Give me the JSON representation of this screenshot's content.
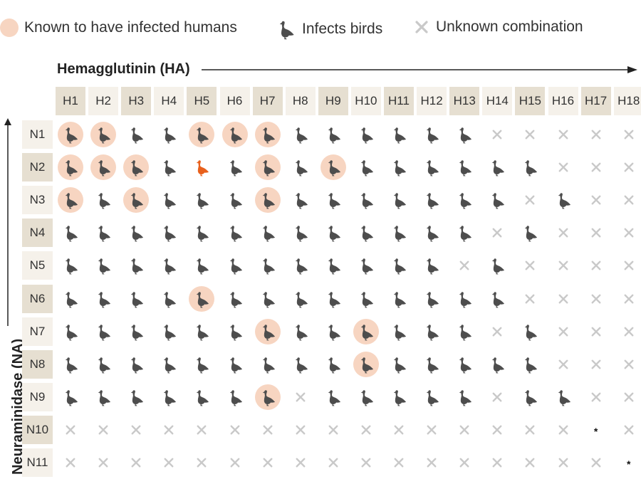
{
  "legend": {
    "humans_label": "Known to have infected humans",
    "birds_label": "Infects birds",
    "unknown_label": "Unknown combination"
  },
  "axes": {
    "ha_title": "Hemagglutinin (HA)",
    "na_title": "Neuraminidase (NA)"
  },
  "colors": {
    "human_circle": "#f7d5c1",
    "bird": "#4d4d4d",
    "highlight_bird": "#e8601c",
    "unknown_x": "#c9c9c9",
    "header_dark": "#e6dfd1",
    "header_light": "#f5f1ea"
  },
  "icons": {
    "bird": "bird-icon",
    "unknown": "x-icon",
    "human": "human-infection-circle",
    "marker": "asterisk"
  },
  "columns": [
    "H1",
    "H2",
    "H3",
    "H4",
    "H5",
    "H6",
    "H7",
    "H8",
    "H9",
    "H10",
    "H11",
    "H12",
    "H13",
    "H14",
    "H15",
    "H16",
    "H17",
    "H18"
  ],
  "rows": [
    {
      "label": "N1",
      "cells": [
        "BH",
        "BH",
        "B",
        "B",
        "BH",
        "BH",
        "BH",
        "B",
        "B",
        "B",
        "B",
        "B",
        "B",
        "X",
        "X",
        "X",
        "X",
        "X"
      ]
    },
    {
      "label": "N2",
      "cells": [
        "BH",
        "BH",
        "BH",
        "B",
        "O",
        "B",
        "BH",
        "B",
        "BH",
        "B",
        "B",
        "B",
        "B",
        "B",
        "B",
        "X",
        "X",
        "X"
      ]
    },
    {
      "label": "N3",
      "cells": [
        "BH",
        "B",
        "BH",
        "B",
        "B",
        "B",
        "BH",
        "B",
        "B",
        "B",
        "B",
        "B",
        "B",
        "B",
        "X",
        "B",
        "X",
        "X"
      ]
    },
    {
      "label": "N4",
      "cells": [
        "B",
        "B",
        "B",
        "B",
        "B",
        "B",
        "B",
        "B",
        "B",
        "B",
        "B",
        "B",
        "B",
        "X",
        "B",
        "X",
        "X",
        "X"
      ]
    },
    {
      "label": "N5",
      "cells": [
        "B",
        "B",
        "B",
        "B",
        "B",
        "B",
        "B",
        "B",
        "B",
        "B",
        "B",
        "B",
        "X",
        "B",
        "X",
        "X",
        "X",
        "X"
      ]
    },
    {
      "label": "N6",
      "cells": [
        "B",
        "B",
        "B",
        "B",
        "BH",
        "B",
        "B",
        "B",
        "B",
        "B",
        "B",
        "B",
        "B",
        "B",
        "X",
        "X",
        "X",
        "X"
      ]
    },
    {
      "label": "N7",
      "cells": [
        "B",
        "B",
        "B",
        "B",
        "B",
        "B",
        "BH",
        "B",
        "B",
        "BH",
        "B",
        "B",
        "B",
        "X",
        "B",
        "X",
        "X",
        "X"
      ]
    },
    {
      "label": "N8",
      "cells": [
        "B",
        "B",
        "B",
        "B",
        "B",
        "B",
        "B",
        "B",
        "B",
        "BH",
        "B",
        "B",
        "B",
        "B",
        "B",
        "X",
        "X",
        "X"
      ]
    },
    {
      "label": "N9",
      "cells": [
        "B",
        "B",
        "B",
        "B",
        "B",
        "B",
        "BH",
        "X",
        "B",
        "B",
        "B",
        "B",
        "B",
        "X",
        "B",
        "B",
        "X",
        "X"
      ]
    },
    {
      "label": "N10",
      "cells": [
        "X",
        "X",
        "X",
        "X",
        "X",
        "X",
        "X",
        "X",
        "X",
        "X",
        "X",
        "X",
        "X",
        "X",
        "X",
        "X",
        "S",
        "X"
      ]
    },
    {
      "label": "N11",
      "cells": [
        "X",
        "X",
        "X",
        "X",
        "X",
        "X",
        "X",
        "X",
        "X",
        "X",
        "X",
        "X",
        "X",
        "X",
        "X",
        "X",
        "X",
        "S"
      ]
    }
  ]
}
